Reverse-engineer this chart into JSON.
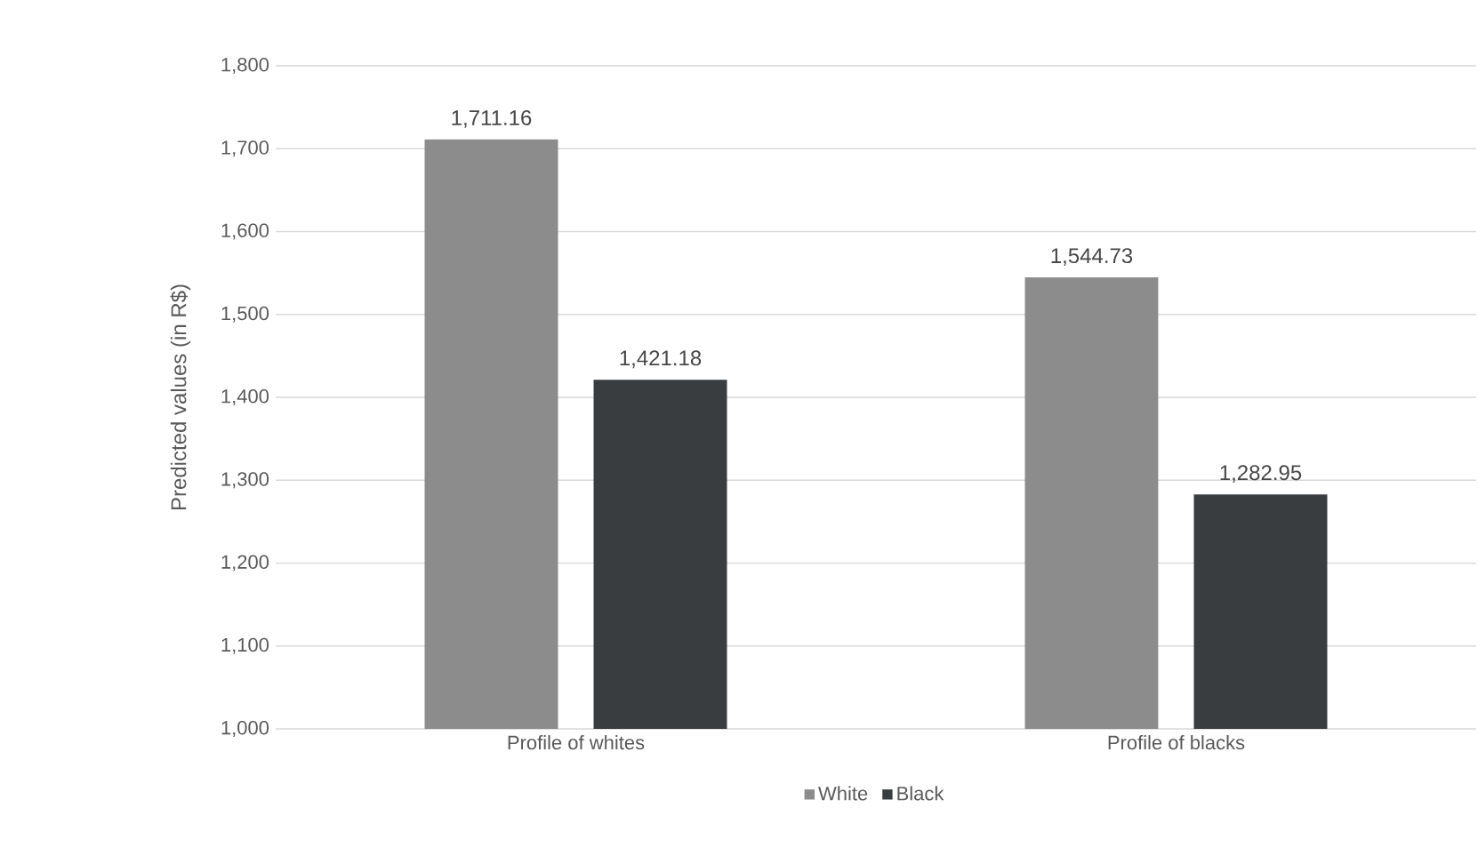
{
  "chart_data": {
    "type": "bar",
    "ylabel": "Predicted values (in R$)",
    "categories": [
      "Profile of whites",
      "Profile of blacks"
    ],
    "series": [
      {
        "name": "White",
        "color": "#8c8c8c",
        "values": [
          1711.16,
          1544.73
        ],
        "value_labels": [
          "1,711.16",
          "1,544.73"
        ]
      },
      {
        "name": "Black",
        "color": "#3a3d3f",
        "values": [
          1421.18,
          1282.95
        ],
        "value_labels": [
          "1,421.18",
          "1,282.95"
        ]
      }
    ],
    "ylim": [
      1000,
      1800
    ],
    "yticks": [
      {
        "value": 1000,
        "label": "1,000"
      },
      {
        "value": 1100,
        "label": "1,100"
      },
      {
        "value": 1200,
        "label": "1,200"
      },
      {
        "value": 1300,
        "label": "1,300"
      },
      {
        "value": 1400,
        "label": "1,400"
      },
      {
        "value": 1500,
        "label": "1,500"
      },
      {
        "value": 1600,
        "label": "1,600"
      },
      {
        "value": 1700,
        "label": "1,700"
      },
      {
        "value": 1800,
        "label": "1,800"
      }
    ],
    "grid": "y",
    "legend": "bottom"
  }
}
